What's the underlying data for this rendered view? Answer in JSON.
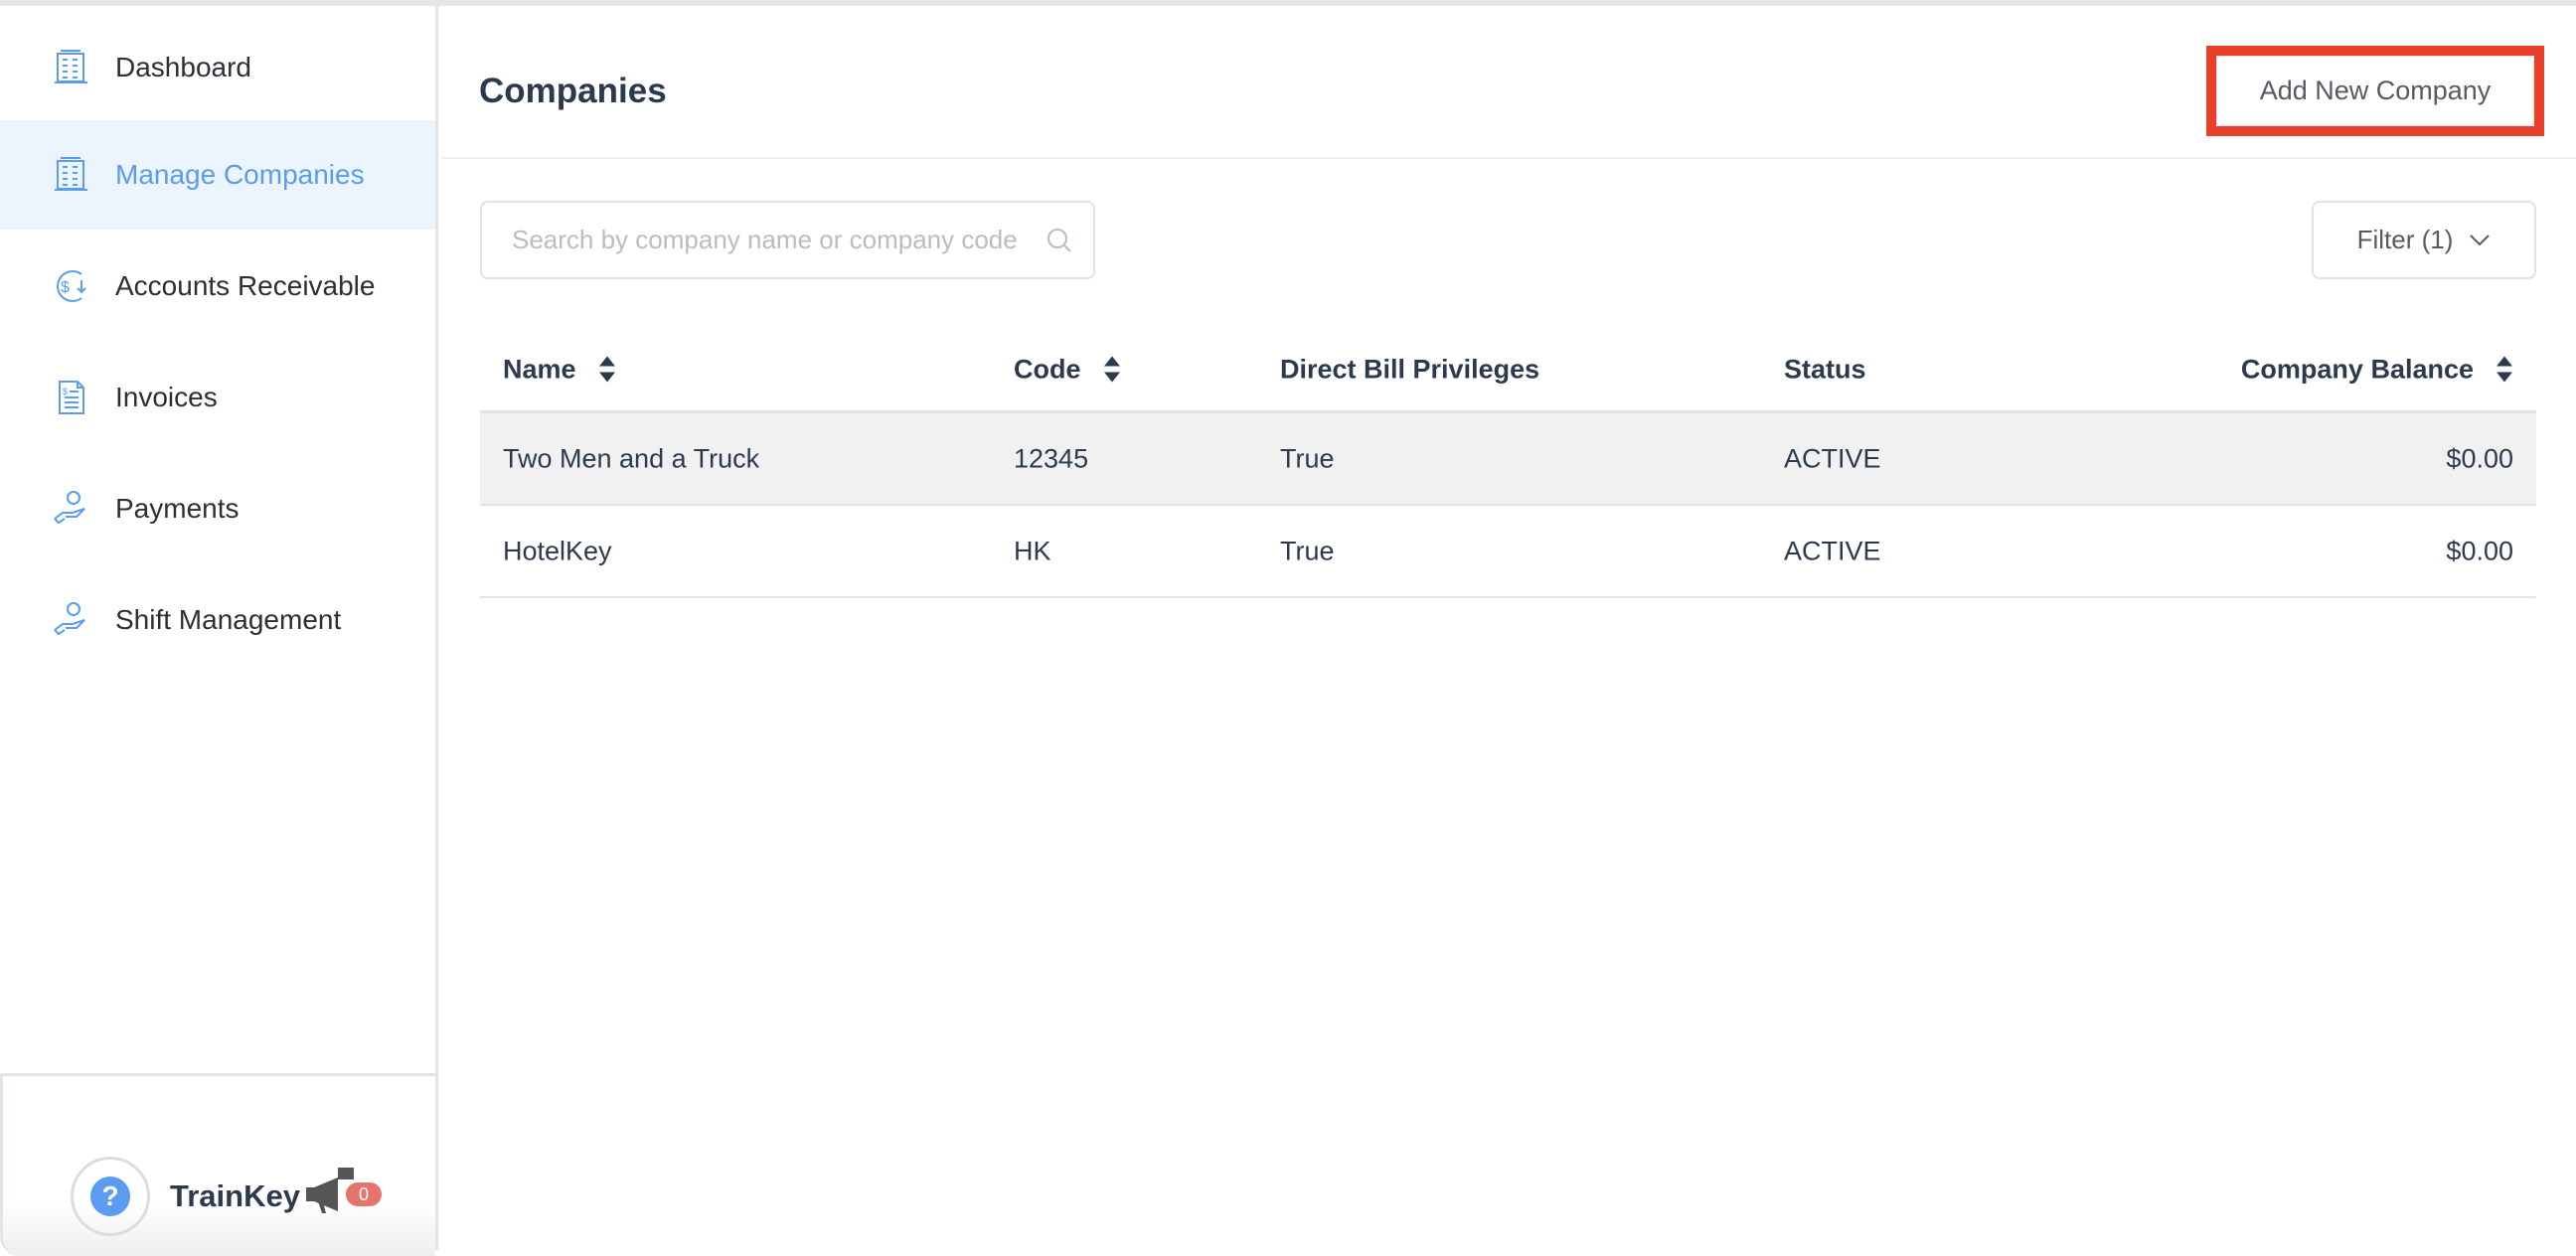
{
  "sidebar": {
    "items": [
      {
        "label": "Dashboard",
        "icon": "building-icon"
      },
      {
        "label": "Manage Companies",
        "icon": "building-icon",
        "active": true
      },
      {
        "label": "Accounts Receivable",
        "icon": "dollar-cycle-icon"
      },
      {
        "label": "Invoices",
        "icon": "invoice-icon"
      },
      {
        "label": "Payments",
        "icon": "hand-coin-icon"
      },
      {
        "label": "Shift Management",
        "icon": "hand-coin-icon"
      }
    ],
    "footer": {
      "help": "?",
      "brand": "TrainKey",
      "notification_count": "0"
    }
  },
  "header": {
    "title": "Companies",
    "add_button": "Add New Company"
  },
  "toolbar": {
    "search_placeholder": "Search by company name or company code",
    "search_value": "",
    "filter_label": "Filter (1)"
  },
  "table": {
    "columns": [
      "Name",
      "Code",
      "Direct Bill Privileges",
      "Status",
      "Company Balance"
    ],
    "rows": [
      [
        "Two Men and a Truck",
        "12345",
        "True",
        "ACTIVE",
        "$0.00"
      ],
      [
        "HotelKey",
        "HK",
        "True",
        "ACTIVE",
        "$0.00"
      ]
    ]
  },
  "colors": {
    "accent": "#5a9cf0",
    "active_bg": "#ecf4fe",
    "highlight_outline": "#e8402a",
    "badge": "#e3746e"
  }
}
